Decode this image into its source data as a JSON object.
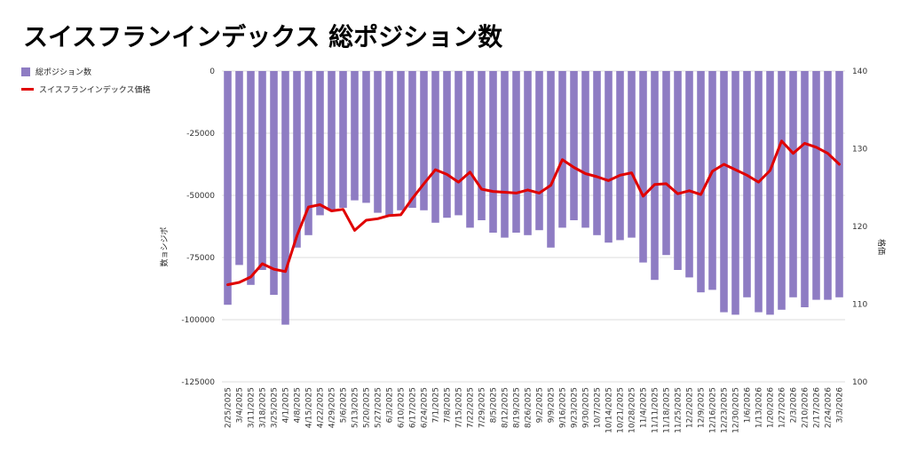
{
  "chart_data": {
    "type": "bar",
    "title": "スイスフランインデックス 総ポジション数",
    "ylabel": "数ョシジポ",
    "y2label": "格価",
    "ylim": [
      -125000,
      0
    ],
    "y2lim": [
      100,
      140
    ],
    "yticks": [
      "0",
      "-25000",
      "-50000",
      "-75000",
      "-100000",
      "-125000"
    ],
    "y2ticks": [
      "140",
      "130",
      "120",
      "110",
      "100"
    ],
    "legend_position": "left",
    "grid": true,
    "categories": [
      "2/25/2025",
      "3/4/2025",
      "3/11/2025",
      "3/18/2025",
      "3/25/2025",
      "4/1/2025",
      "4/8/2025",
      "4/15/2025",
      "4/22/2025",
      "4/29/2025",
      "5/6/2025",
      "5/13/2025",
      "5/20/2025",
      "5/27/2025",
      "6/3/2025",
      "6/10/2025",
      "6/17/2025",
      "6/24/2025",
      "7/1/2025",
      "7/8/2025",
      "7/15/2025",
      "7/22/2025",
      "7/29/2025",
      "8/5/2025",
      "8/12/2025",
      "8/19/2025",
      "8/26/2025",
      "9/2/2025",
      "9/9/2025",
      "9/16/2025",
      "9/23/2025",
      "9/30/2025",
      "10/7/2025",
      "10/14/2025",
      "10/21/2025",
      "10/28/2025",
      "11/4/2025",
      "11/11/2025",
      "11/18/2025",
      "11/25/2025",
      "12/2/2025",
      "12/9/2025",
      "12/16/2025",
      "12/23/2025",
      "12/30/2025",
      "1/6/2026",
      "1/13/2026",
      "1/20/2026",
      "1/27/2026",
      "2/3/2026",
      "2/10/2026",
      "2/17/2026",
      "2/24/2026",
      "3/3/2026"
    ],
    "series": [
      {
        "name": "総ポジション数",
        "type": "bar",
        "axis": "left",
        "color": "#8e7cc3",
        "values": [
          -94000,
          -78000,
          -86000,
          -80000,
          -90000,
          -102000,
          -71000,
          -66000,
          -58000,
          -56000,
          -55000,
          -52000,
          -53000,
          -57000,
          -58000,
          -56000,
          -55000,
          -56000,
          -61000,
          -59000,
          -58000,
          -63000,
          -60000,
          -65000,
          -67000,
          -65000,
          -66000,
          -64000,
          -71000,
          -63000,
          -60000,
          -63000,
          -66000,
          -69000,
          -68000,
          -67000,
          -77000,
          -84000,
          -74000,
          -80000,
          -83000,
          -89000,
          -88000,
          -97000,
          -98000,
          -91000,
          -97000,
          -98000,
          -96000,
          -91000,
          -95000,
          -92000,
          -92000,
          -91000
        ]
      },
      {
        "name": "スイスフランインデックス価格",
        "type": "line",
        "axis": "right",
        "color": "#e00000",
        "values": [
          112.5,
          112.8,
          113.5,
          115.2,
          114.5,
          114.2,
          118.8,
          122.5,
          122.8,
          122.0,
          122.2,
          119.5,
          120.8,
          121.0,
          121.4,
          121.5,
          123.6,
          125.5,
          127.3,
          126.7,
          125.7,
          127.0,
          124.8,
          124.5,
          124.4,
          124.3,
          124.7,
          124.3,
          125.3,
          128.6,
          127.6,
          126.8,
          126.4,
          125.9,
          126.6,
          126.9,
          123.9,
          125.4,
          125.5,
          124.2,
          124.6,
          124.1,
          127.1,
          128.0,
          127.3,
          126.6,
          125.7,
          127.2,
          131.0,
          129.4,
          130.7,
          130.2,
          129.4,
          128.0
        ]
      }
    ]
  }
}
